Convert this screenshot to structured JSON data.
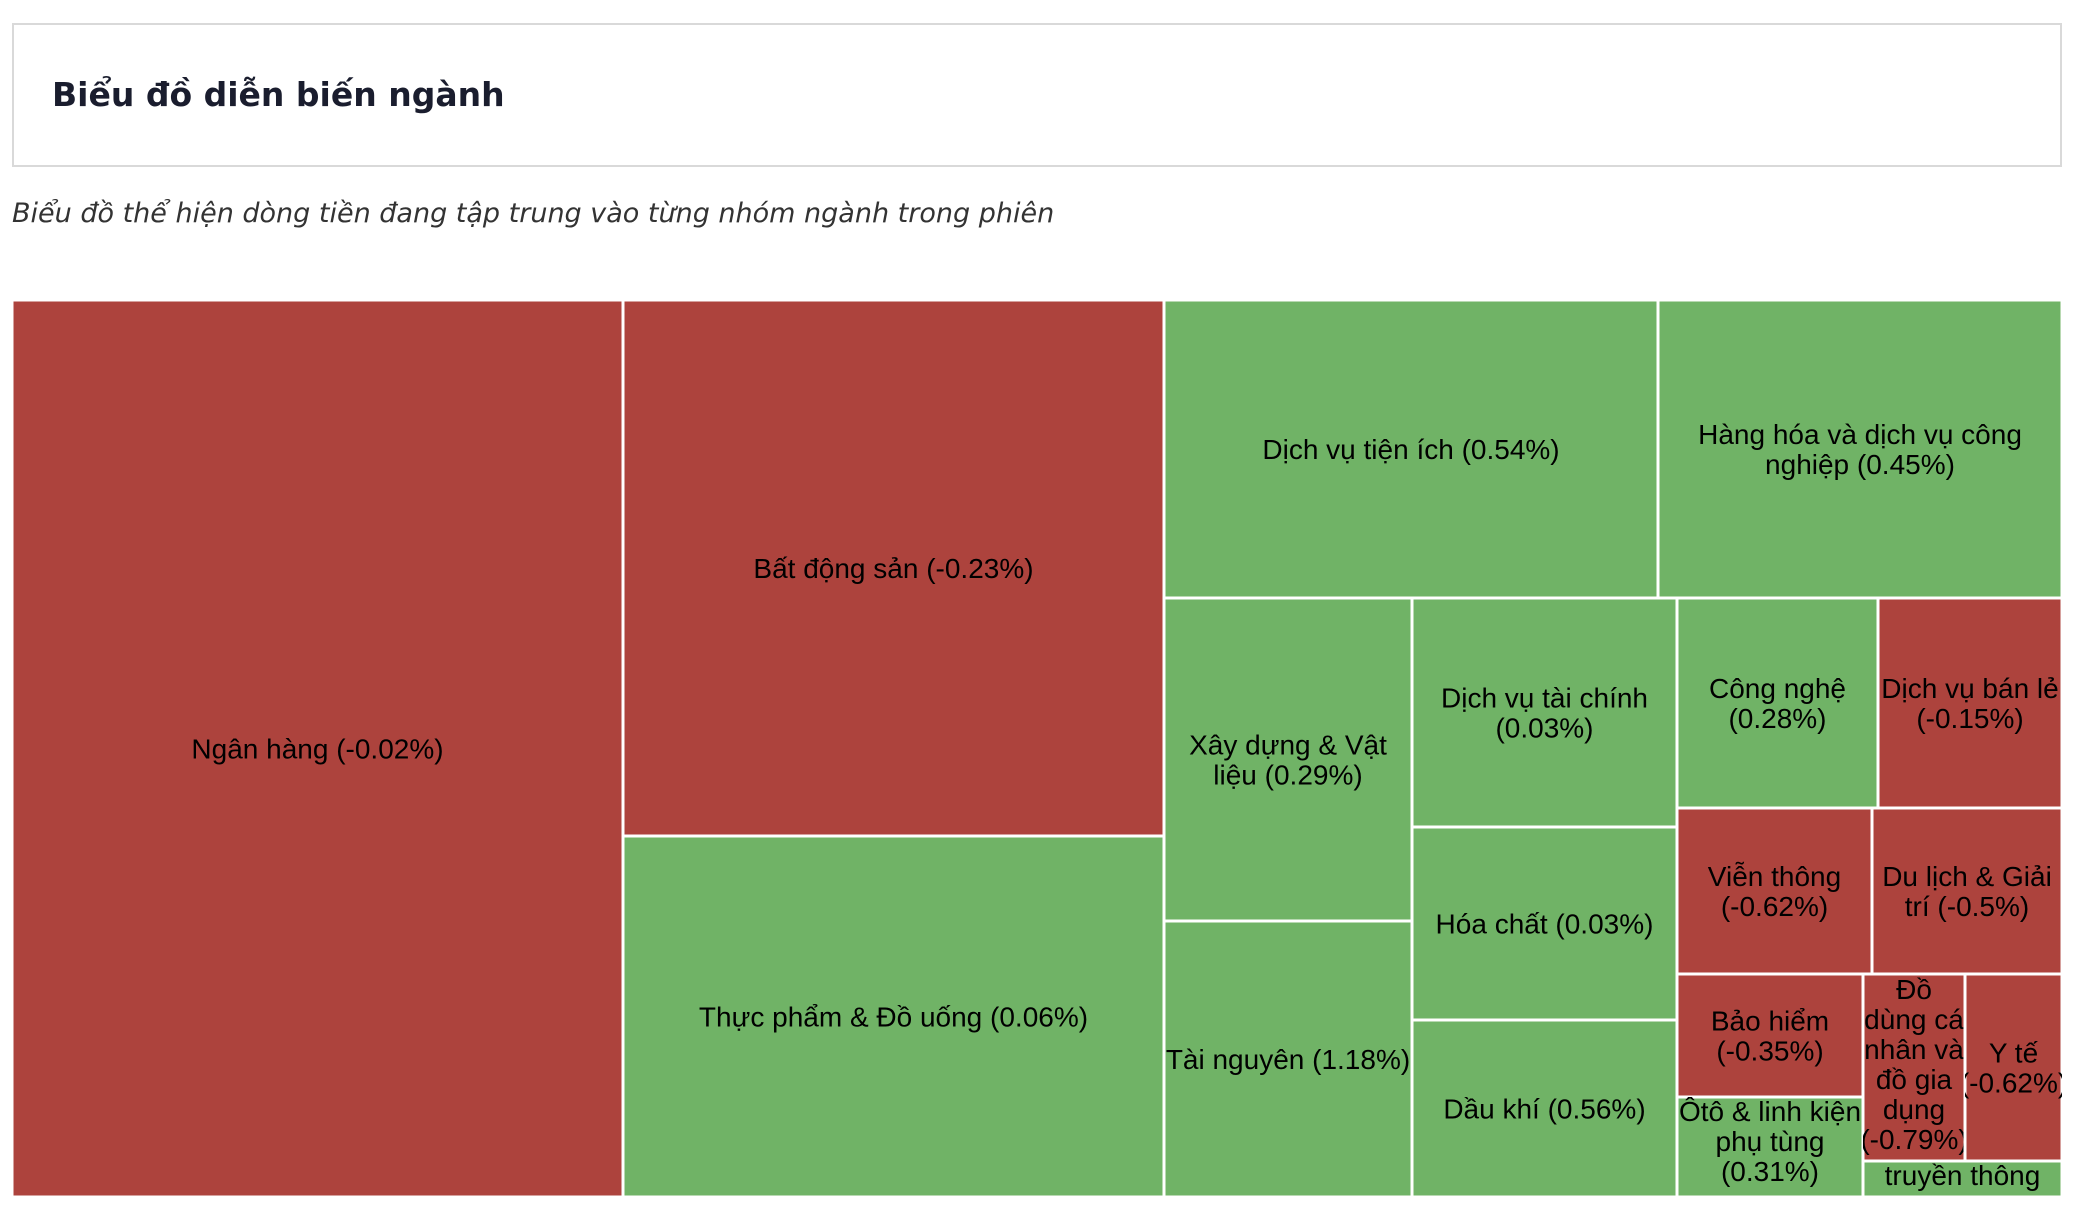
{
  "header": {
    "title": "Biểu đồ diễn biến ngành",
    "subtitle": "Biểu đồ thể hiện dòng tiền đang tập trung vào từng nhóm ngành trong phiên"
  },
  "colors": {
    "up": "#70b366",
    "down": "#ad433d",
    "border": "#ffffff"
  },
  "chart_data": {
    "type": "treemap",
    "title": "",
    "items": [
      {
        "name": "Ngân hàng",
        "change": -0.02,
        "label": "Ngân hàng (-0.02%)"
      },
      {
        "name": "Bất động sản",
        "change": -0.23,
        "label": "Bất động sản (-0.23%)"
      },
      {
        "name": "Thực phẩm & Đồ uống",
        "change": 0.06,
        "label": "Thực phẩm & Đồ uống (0.06%)"
      },
      {
        "name": "Dịch vụ tiện ích",
        "change": 0.54,
        "label": "Dịch vụ tiện ích (0.54%)"
      },
      {
        "name": "Hàng hóa và dịch vụ công nghiệp",
        "change": 0.45,
        "label": "Hàng hóa và dịch vụ công nghiệp (0.45%)"
      },
      {
        "name": "Xây dựng & Vật liệu",
        "change": 0.29,
        "label": "Xây dựng & Vật liệu (0.29%)"
      },
      {
        "name": "Tài nguyên",
        "change": 1.18,
        "label": "Tài nguyên (1.18%)"
      },
      {
        "name": "Dịch vụ tài chính",
        "change": 0.03,
        "label": "Dịch vụ tài chính (0.03%)"
      },
      {
        "name": "Hóa chất",
        "change": 0.03,
        "label": "Hóa chất (0.03%)"
      },
      {
        "name": "Dầu khí",
        "change": 0.56,
        "label": "Dầu khí (0.56%)"
      },
      {
        "name": "Công nghệ",
        "change": 0.28,
        "label": "Công nghệ (0.28%)"
      },
      {
        "name": "Dịch vụ bán lẻ",
        "change": -0.15,
        "label": "Dịch vụ bán lẻ (-0.15%)"
      },
      {
        "name": "Viễn thông",
        "change": -0.62,
        "label": "Viễn thông (-0.62%)"
      },
      {
        "name": "Du lịch & Giải trí",
        "change": -0.5,
        "label": "Du lịch & Giải trí (-0.5%)"
      },
      {
        "name": "Bảo hiểm",
        "change": -0.35,
        "label": "Bảo hiểm (-0.35%)"
      },
      {
        "name": "Ôtô & linh kiện phụ tùng",
        "change": 0.31,
        "label": "Ôtô & linh kiện phụ tùng (0.31%)"
      },
      {
        "name": "Đồ dùng cá nhân và đồ gia dụng",
        "change": -0.79,
        "label": "Đồ dùng cá nhân và đồ gia dụng (-0.79%)"
      },
      {
        "name": "Y tế",
        "change": -0.62,
        "label": "Y tế (-0.62%)"
      },
      {
        "name": "Truyền thông",
        "change": null,
        "label": "truyền thông"
      }
    ]
  }
}
